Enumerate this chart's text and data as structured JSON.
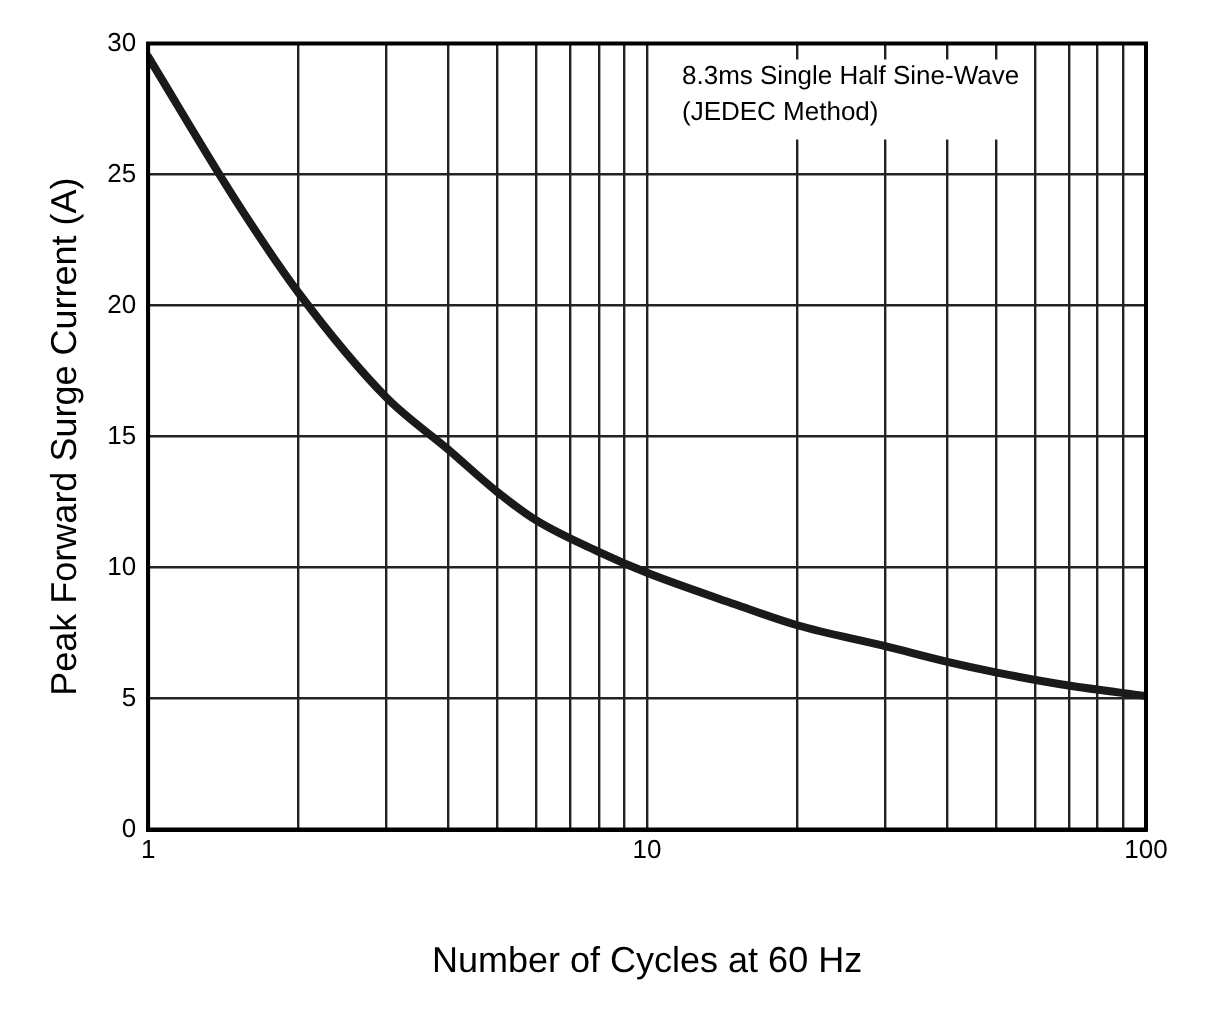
{
  "chart_data": {
    "type": "line",
    "xlabel": "Number of Cycles at 60 Hz",
    "ylabel": "Peak Forward Surge Current (A)",
    "annotations": [
      "8.3ms Single Half Sine-Wave",
      "(JEDEC Method)"
    ],
    "log": "x",
    "grid": true,
    "marker": "none",
    "line_style": "solid",
    "xlim": [
      1,
      100
    ],
    "ylim": [
      0,
      30
    ],
    "xticks": [
      1,
      {
        "value": 2,
        "label": null
      },
      {
        "value": 3,
        "label": null
      },
      {
        "value": 4,
        "label": null
      },
      {
        "value": 5,
        "label": null
      },
      {
        "value": 6,
        "label": null
      },
      {
        "value": 7,
        "label": null
      },
      {
        "value": 8,
        "label": null
      },
      {
        "value": 9,
        "label": null
      },
      10,
      {
        "value": 20,
        "label": null
      },
      {
        "value": 30,
        "label": null
      },
      {
        "value": 40,
        "label": null
      },
      {
        "value": 50,
        "label": null
      },
      {
        "value": 60,
        "label": null
      },
      {
        "value": 70,
        "label": null
      },
      {
        "value": 80,
        "label": null
      },
      {
        "value": 90,
        "label": null
      },
      100
    ],
    "yticks": [
      0,
      5,
      10,
      15,
      20,
      25,
      30
    ],
    "series": [
      {
        "color": "#1a1a1a",
        "x": [
          1,
          1.5,
          2,
          3,
          4,
          5,
          6,
          8,
          10,
          15,
          20,
          30,
          40,
          50,
          70,
          100
        ],
        "values": [
          29.5,
          24,
          20.5,
          16.5,
          14.5,
          12.9,
          11.8,
          10.6,
          9.8,
          8.6,
          7.8,
          7,
          6.4,
          6,
          5.5,
          5.1
        ]
      }
    ]
  }
}
